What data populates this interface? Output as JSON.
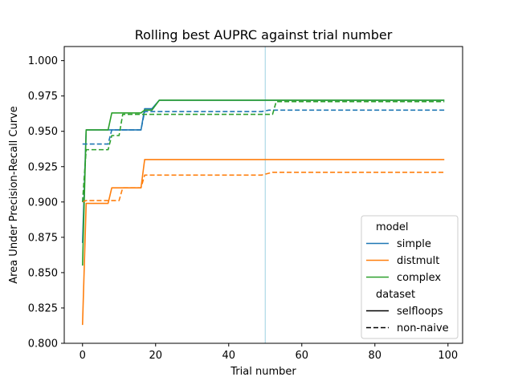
{
  "chart_data": {
    "type": "line",
    "title": "Rolling best AUPRC against trial number",
    "xlabel": "Trial number",
    "ylabel": "Area Under Precision-Recall Curve",
    "xlim": [
      -5,
      104
    ],
    "ylim": [
      0.8,
      1.01
    ],
    "xticks": [
      0,
      20,
      40,
      60,
      80,
      100
    ],
    "xtick_labels": [
      "0",
      "20",
      "40",
      "60",
      "80",
      "100"
    ],
    "yticks": [
      0.8,
      0.825,
      0.85,
      0.875,
      0.9,
      0.925,
      0.95,
      0.975,
      1.0
    ],
    "ytick_labels": [
      "0.800",
      "0.825",
      "0.850",
      "0.875",
      "0.900",
      "0.925",
      "0.950",
      "0.975",
      "1.000"
    ],
    "grid": false,
    "vline": {
      "x": 50,
      "color": "#add8e6"
    },
    "legend": {
      "placement": "lower-right",
      "hue_title": "model",
      "style_title": "dataset",
      "hue_entries": [
        {
          "label": "simple",
          "color": "#1f77b4"
        },
        {
          "label": "distmult",
          "color": "#ff7f0e"
        },
        {
          "label": "complex",
          "color": "#2ca02c"
        }
      ],
      "style_entries": [
        {
          "label": "selfloops",
          "dash": "solid"
        },
        {
          "label": "non-naive",
          "dash": "dashed"
        }
      ]
    },
    "series": [
      {
        "model": "simple",
        "dataset": "selfloops",
        "color": "#1f77b4",
        "dash": "solid",
        "points": [
          [
            0,
            0.871
          ],
          [
            1,
            0.951
          ],
          [
            16,
            0.951
          ],
          [
            17,
            0.966
          ],
          [
            19,
            0.966
          ],
          [
            21,
            0.972
          ],
          [
            99,
            0.972
          ]
        ]
      },
      {
        "model": "distmult",
        "dataset": "selfloops",
        "color": "#ff7f0e",
        "dash": "solid",
        "points": [
          [
            0,
            0.813
          ],
          [
            1,
            0.899
          ],
          [
            7,
            0.899
          ],
          [
            8,
            0.91
          ],
          [
            16,
            0.91
          ],
          [
            17,
            0.93
          ],
          [
            99,
            0.93
          ]
        ]
      },
      {
        "model": "complex",
        "dataset": "selfloops",
        "color": "#2ca02c",
        "dash": "solid",
        "points": [
          [
            0,
            0.855
          ],
          [
            1,
            0.951
          ],
          [
            7,
            0.951
          ],
          [
            8,
            0.963
          ],
          [
            16,
            0.963
          ],
          [
            17,
            0.965
          ],
          [
            19,
            0.965
          ],
          [
            21,
            0.972
          ],
          [
            99,
            0.972
          ]
        ]
      },
      {
        "model": "simple",
        "dataset": "non-naive",
        "color": "#1f77b4",
        "dash": "dashed",
        "points": [
          [
            0,
            0.941
          ],
          [
            7,
            0.941
          ],
          [
            8,
            0.951
          ],
          [
            16,
            0.951
          ],
          [
            17,
            0.964
          ],
          [
            49,
            0.964
          ],
          [
            51,
            0.965
          ],
          [
            99,
            0.965
          ]
        ]
      },
      {
        "model": "distmult",
        "dataset": "non-naive",
        "color": "#ff7f0e",
        "dash": "dashed",
        "points": [
          [
            0,
            0.9
          ],
          [
            1,
            0.901
          ],
          [
            10,
            0.901
          ],
          [
            11,
            0.91
          ],
          [
            16,
            0.91
          ],
          [
            17,
            0.919
          ],
          [
            49,
            0.919
          ],
          [
            52,
            0.921
          ],
          [
            99,
            0.921
          ]
        ]
      },
      {
        "model": "complex",
        "dataset": "non-naive",
        "color": "#2ca02c",
        "dash": "dashed",
        "points": [
          [
            0,
            0.9
          ],
          [
            1,
            0.937
          ],
          [
            7,
            0.937
          ],
          [
            8,
            0.947
          ],
          [
            10,
            0.947
          ],
          [
            11,
            0.962
          ],
          [
            52,
            0.962
          ],
          [
            53,
            0.971
          ],
          [
            99,
            0.971
          ]
        ]
      }
    ]
  }
}
